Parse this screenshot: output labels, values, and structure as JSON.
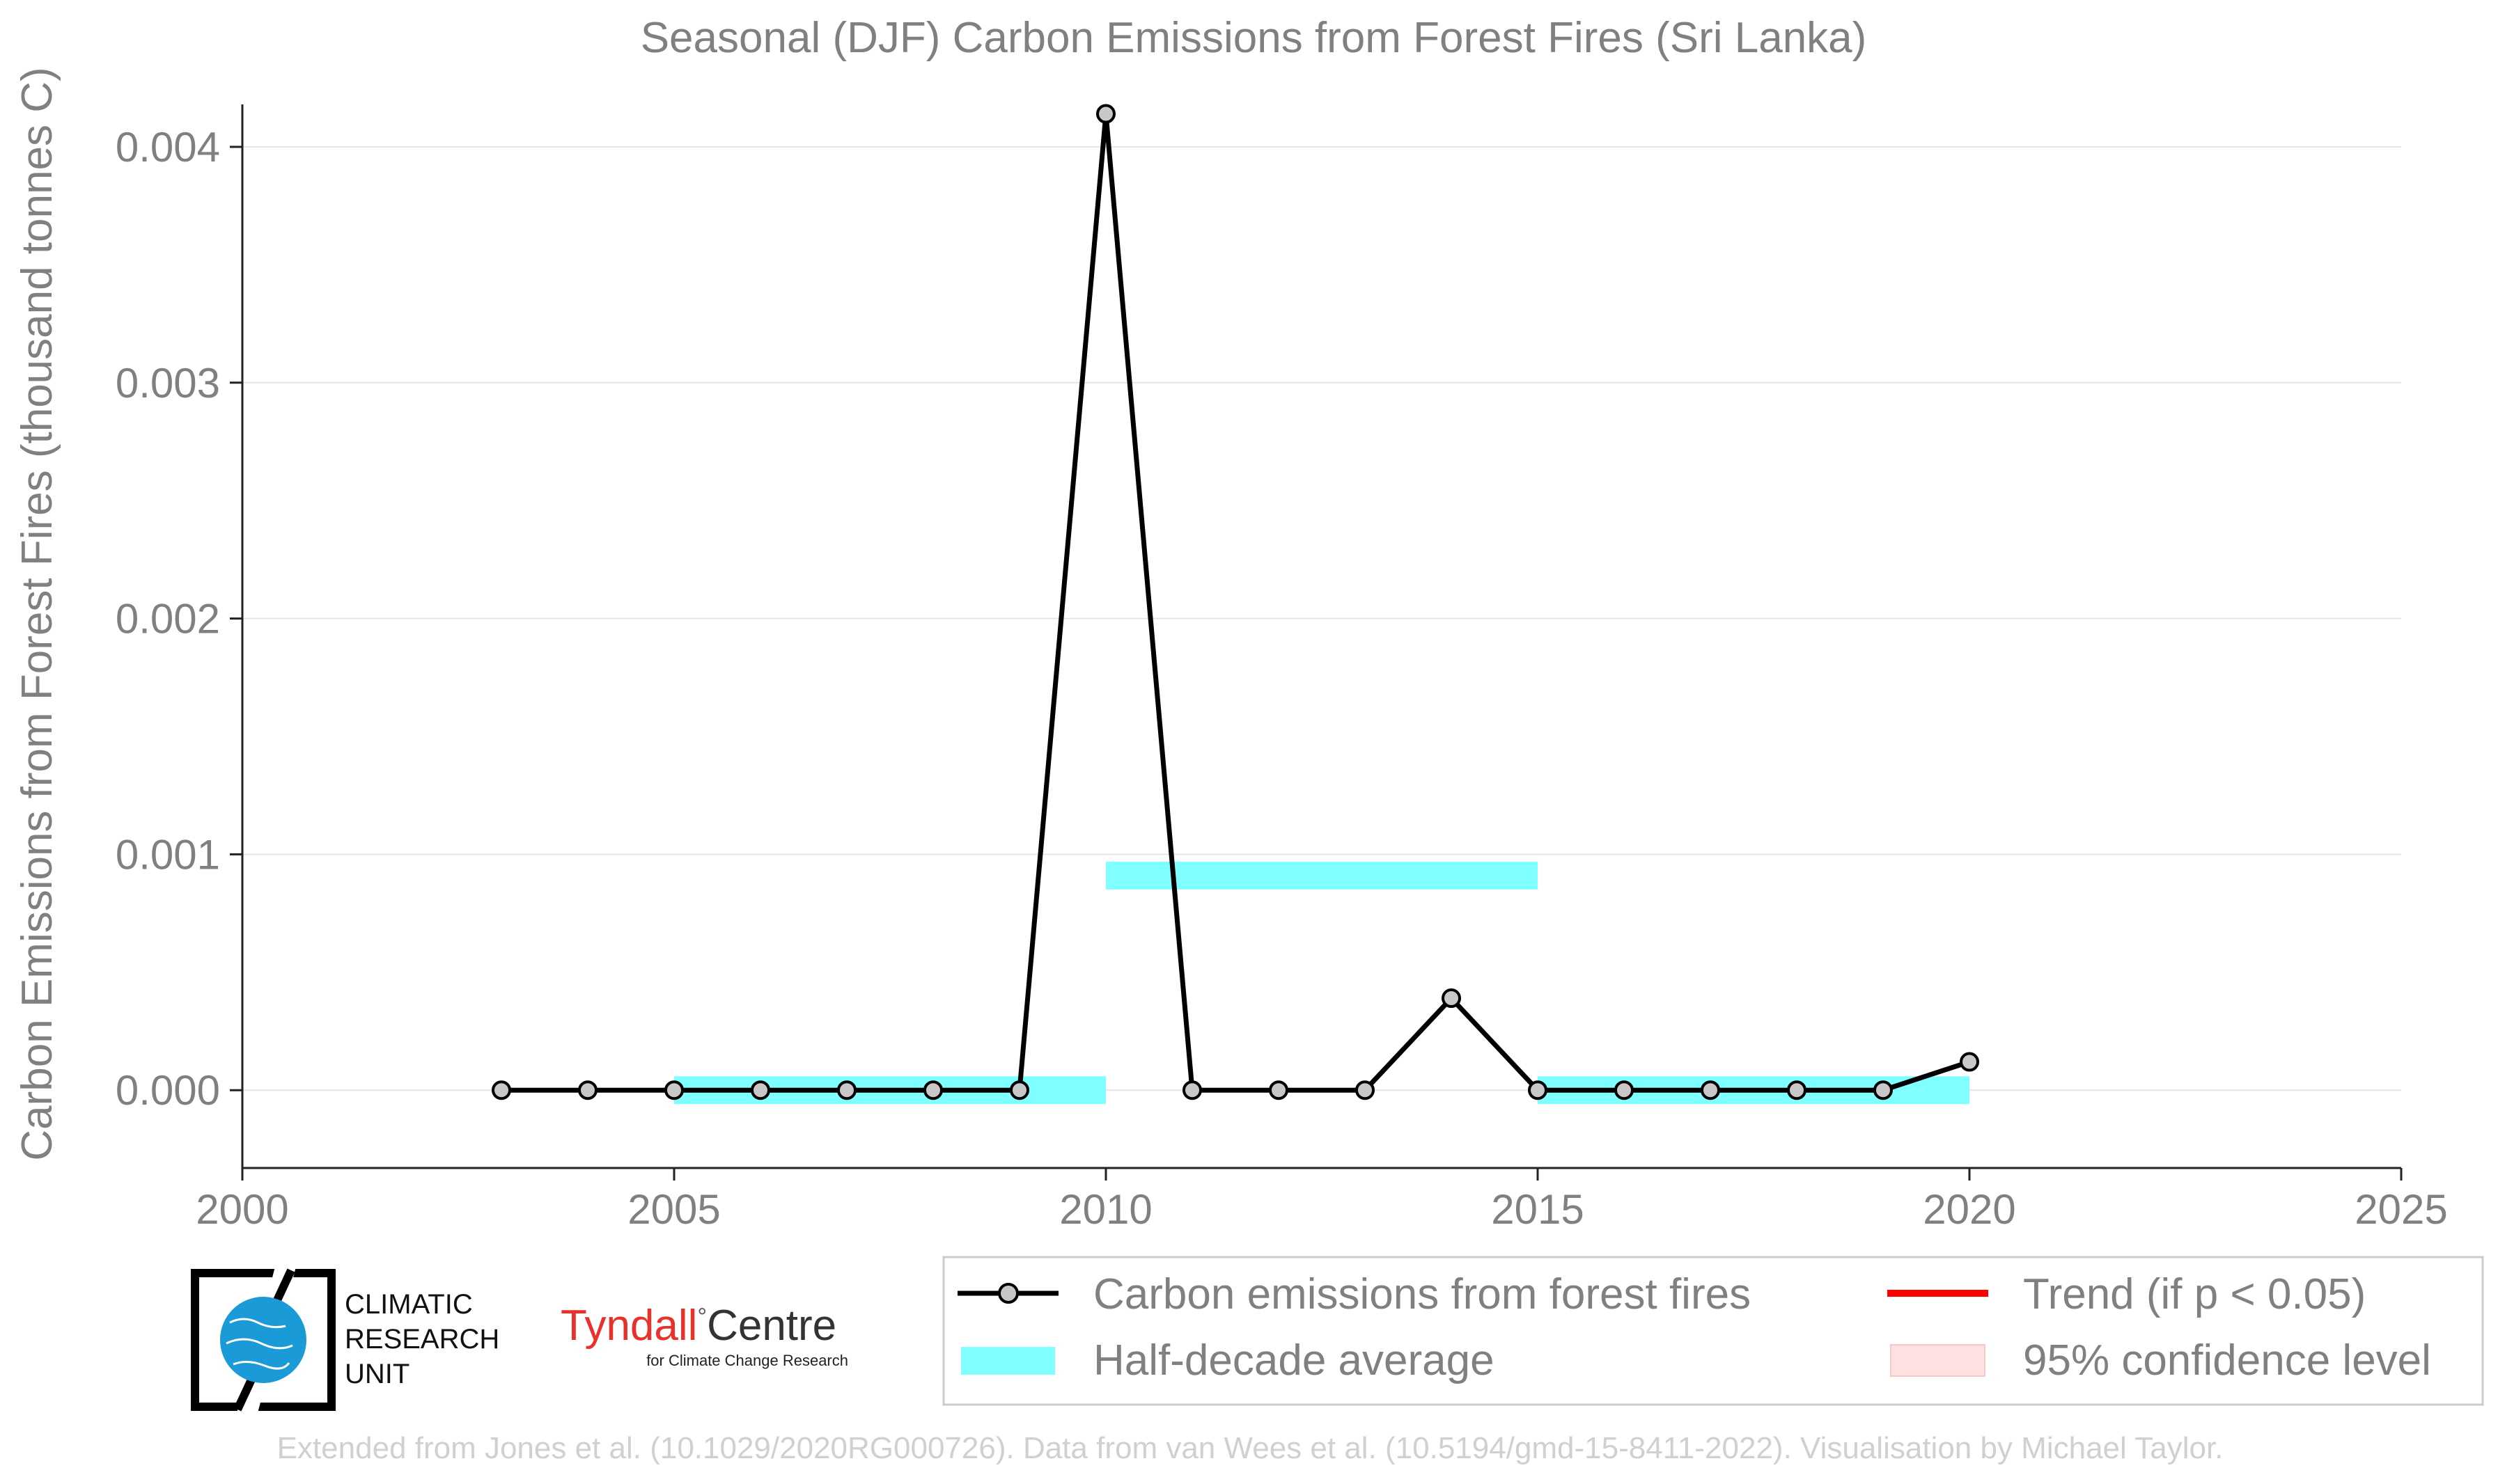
{
  "chart_data": {
    "type": "line",
    "title": "Seasonal (DJF) Carbon Emissions from Forest Fires (Sri Lanka)",
    "xlabel": "",
    "ylabel": "Carbon Emissions from Forest Fires (thousand tonnes C)",
    "xlim": [
      2000,
      2025
    ],
    "ylim": [
      -0.00033,
      0.00418
    ],
    "xticks": [
      2000,
      2005,
      2010,
      2015,
      2020,
      2025
    ],
    "yticks": [
      0.0,
      0.001,
      0.002,
      0.003,
      0.004
    ],
    "ytick_labels": [
      "0.000",
      "0.001",
      "0.002",
      "0.003",
      "0.004"
    ],
    "grid": "horizontal",
    "series": [
      {
        "name": "Carbon emissions from forest fires",
        "color": "#000000",
        "marker_fill": "#c8c8c8",
        "x": [
          2003,
          2004,
          2005,
          2006,
          2007,
          2008,
          2009,
          2010,
          2011,
          2012,
          2013,
          2014,
          2015,
          2016,
          2017,
          2018,
          2019,
          2020
        ],
        "y": [
          0,
          0,
          0,
          0,
          0,
          0,
          0,
          0.00414,
          0,
          0,
          0,
          0.00039,
          0,
          0,
          0,
          0,
          0,
          0.00012
        ]
      }
    ],
    "half_decade_average": {
      "name": "Half-decade average",
      "color": "#7fffff",
      "segments": [
        {
          "x_start": 2005,
          "x_end": 2010,
          "y": 0.0
        },
        {
          "x_start": 2010,
          "x_end": 2015,
          "y": 0.00091
        },
        {
          "x_start": 2015,
          "x_end": 2020,
          "y": 0.0
        }
      ]
    },
    "legend": {
      "placement": "bottom-right",
      "entries": [
        {
          "label": "Carbon emissions from forest fires",
          "kind": "line-marker",
          "color": "#000000"
        },
        {
          "label": "Half-decade average",
          "kind": "band",
          "color": "#7fffff"
        },
        {
          "label": "Trend (if p < 0.05)",
          "kind": "line",
          "color": "#ff0000"
        },
        {
          "label": "95% confidence level",
          "kind": "band",
          "color": "#fde0e0"
        }
      ]
    }
  },
  "credit": "Extended from Jones et al. (10.1029/2020RG000726). Data from van Wees et al. (10.5194/gmd-15-8411-2022). Visualisation by Michael Taylor.",
  "logos": {
    "cru": {
      "line1": "CLIMATIC",
      "line2": "RESEARCH",
      "line3": "UNIT"
    },
    "tyndall": {
      "name": "Tyndall",
      "degree": "°",
      "centre": "Centre",
      "sub": "for Climate Change Research"
    }
  }
}
